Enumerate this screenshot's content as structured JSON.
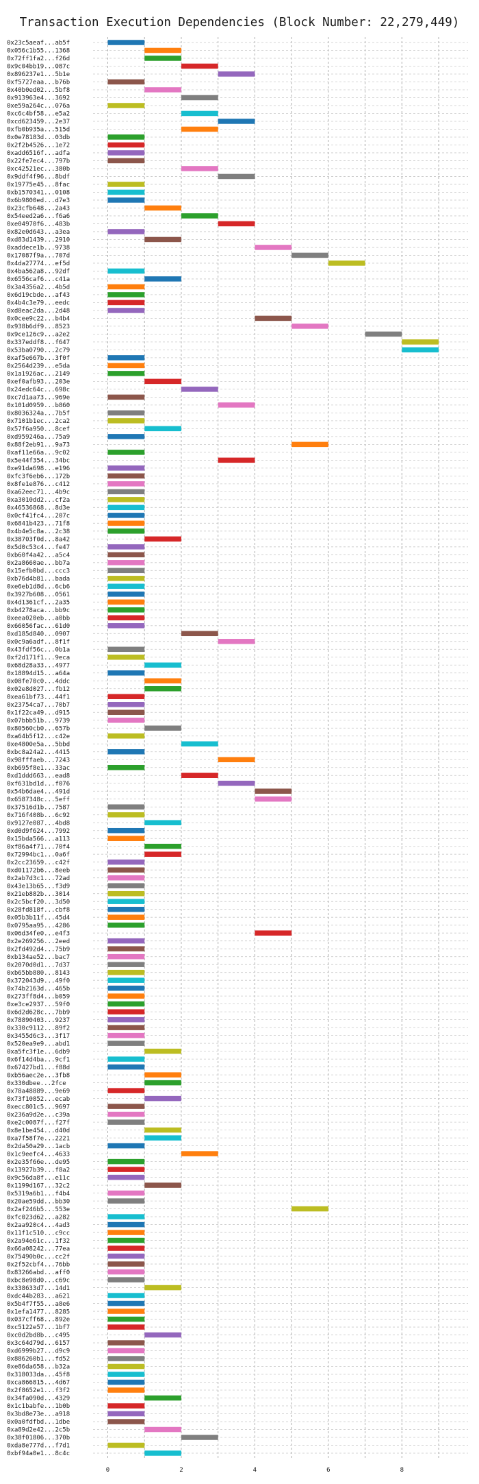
{
  "chart_data": {
    "type": "bar",
    "orientation": "horizontal",
    "title": "Transaction Execution Dependencies (Block Number: 22,279,449)",
    "xlabel": "",
    "ylabel": "",
    "xlim": [
      -0.4,
      9.8
    ],
    "xticks": [
      0,
      2,
      4,
      6,
      8
    ],
    "grid": true,
    "rows": [
      {
        "label": "0x23c5aeaf...ab5f",
        "x": 0,
        "color": "#1f77b4"
      },
      {
        "label": "0x056c1b55...1368",
        "x": 1,
        "color": "#ff7f0e"
      },
      {
        "label": "0x72ff1fa2...f26d",
        "x": 1,
        "color": "#2ca02c"
      },
      {
        "label": "0x9c04bb19...087c",
        "x": 2,
        "color": "#d62728"
      },
      {
        "label": "0x896237e1...5b1e",
        "x": 3,
        "color": "#9467bd"
      },
      {
        "label": "0xf5727eaa...b76b",
        "x": 0,
        "color": "#8c564b"
      },
      {
        "label": "0x40b0ed02...5bf8",
        "x": 1,
        "color": "#e377c2"
      },
      {
        "label": "0x913963e4...3692",
        "x": 2,
        "color": "#7f7f7f"
      },
      {
        "label": "0xe59a264c...076a",
        "x": 0,
        "color": "#bcbd22"
      },
      {
        "label": "0xc6c4bf58...e5a2",
        "x": 2,
        "color": "#17becf"
      },
      {
        "label": "0xcd623459...2e37",
        "x": 3,
        "color": "#1f77b4"
      },
      {
        "label": "0xfb0b935a...515d",
        "x": 2,
        "color": "#ff7f0e"
      },
      {
        "label": "0x0e78183d...03db",
        "x": 0,
        "color": "#2ca02c"
      },
      {
        "label": "0x2f2b4526...1e72",
        "x": 0,
        "color": "#d62728"
      },
      {
        "label": "0xadd6516f...adfa",
        "x": 0,
        "color": "#9467bd"
      },
      {
        "label": "0x22fe7ec4...797b",
        "x": 0,
        "color": "#8c564b"
      },
      {
        "label": "0xc42521ec...380b",
        "x": 2,
        "color": "#e377c2"
      },
      {
        "label": "0x9ddf4f96...8bdf",
        "x": 3,
        "color": "#7f7f7f"
      },
      {
        "label": "0x19775e45...8fac",
        "x": 0,
        "color": "#bcbd22"
      },
      {
        "label": "0xb1570341...0108",
        "x": 0,
        "color": "#17becf"
      },
      {
        "label": "0x6b9800ed...d7e3",
        "x": 0,
        "color": "#1f77b4"
      },
      {
        "label": "0x23cfb648...2a43",
        "x": 1,
        "color": "#ff7f0e"
      },
      {
        "label": "0x54eed2a6...f6a6",
        "x": 2,
        "color": "#2ca02c"
      },
      {
        "label": "0xe04970f6...483b",
        "x": 3,
        "color": "#d62728"
      },
      {
        "label": "0x82e0d643...a3ea",
        "x": 0,
        "color": "#9467bd"
      },
      {
        "label": "0xd83d1439...2910",
        "x": 1,
        "color": "#8c564b"
      },
      {
        "label": "0xaddece1b...9738",
        "x": 4,
        "color": "#e377c2"
      },
      {
        "label": "0x17087f9a...707d",
        "x": 5,
        "color": "#7f7f7f"
      },
      {
        "label": "0x4da27774...ef5d",
        "x": 6,
        "color": "#bcbd22"
      },
      {
        "label": "0x4ba562a8...92df",
        "x": 0,
        "color": "#17becf"
      },
      {
        "label": "0x6556caf6...c41a",
        "x": 1,
        "color": "#1f77b4"
      },
      {
        "label": "0x3a4356a2...4b5d",
        "x": 0,
        "color": "#ff7f0e"
      },
      {
        "label": "0x6d19cbde...af43",
        "x": 0,
        "color": "#2ca02c"
      },
      {
        "label": "0x4b4c3e79...eedc",
        "x": 0,
        "color": "#d62728"
      },
      {
        "label": "0xd8eac2da...2d48",
        "x": 0,
        "color": "#9467bd"
      },
      {
        "label": "0x0cee9c22...b4b4",
        "x": 4,
        "color": "#8c564b"
      },
      {
        "label": "0x938b6df9...8523",
        "x": 5,
        "color": "#e377c2"
      },
      {
        "label": "0x9ce126c9...a2e2",
        "x": 7,
        "color": "#7f7f7f"
      },
      {
        "label": "0x337eddf8...f647",
        "x": 8,
        "color": "#bcbd22"
      },
      {
        "label": "0x53ba0790...2c79",
        "x": 8,
        "color": "#17becf"
      },
      {
        "label": "0xaf5e667b...3f0f",
        "x": 0,
        "color": "#1f77b4"
      },
      {
        "label": "0x2564d239...e5da",
        "x": 0,
        "color": "#ff7f0e"
      },
      {
        "label": "0x1a1926ac...2149",
        "x": 0,
        "color": "#2ca02c"
      },
      {
        "label": "0xef0afb93...203e",
        "x": 1,
        "color": "#d62728"
      },
      {
        "label": "0x24edc64c...698c",
        "x": 2,
        "color": "#9467bd"
      },
      {
        "label": "0xc7d1aa73...969e",
        "x": 0,
        "color": "#8c564b"
      },
      {
        "label": "0x101d0959...b860",
        "x": 3,
        "color": "#e377c2"
      },
      {
        "label": "0x8036324a...7b5f",
        "x": 0,
        "color": "#7f7f7f"
      },
      {
        "label": "0x7101b1ec...2ca2",
        "x": 0,
        "color": "#bcbd22"
      },
      {
        "label": "0x57f6a950...8cef",
        "x": 1,
        "color": "#17becf"
      },
      {
        "label": "0xd959246a...75a9",
        "x": 0,
        "color": "#1f77b4"
      },
      {
        "label": "0x88f2eb91...9a73",
        "x": 5,
        "color": "#ff7f0e"
      },
      {
        "label": "0xaf11e66a...9c02",
        "x": 0,
        "color": "#2ca02c"
      },
      {
        "label": "0x5e44f354...34bc",
        "x": 3,
        "color": "#d62728"
      },
      {
        "label": "0xe91da698...e196",
        "x": 0,
        "color": "#9467bd"
      },
      {
        "label": "0xfc3f6eb6...172b",
        "x": 0,
        "color": "#8c564b"
      },
      {
        "label": "0x8fe1e876...c412",
        "x": 0,
        "color": "#e377c2"
      },
      {
        "label": "0xa62eec71...4b9c",
        "x": 0,
        "color": "#7f7f7f"
      },
      {
        "label": "0xa3010dd2...cf2a",
        "x": 0,
        "color": "#bcbd22"
      },
      {
        "label": "0x46536868...8d3e",
        "x": 0,
        "color": "#17becf"
      },
      {
        "label": "0x0cf41fc4...207c",
        "x": 0,
        "color": "#1f77b4"
      },
      {
        "label": "0x6841b423...71f8",
        "x": 0,
        "color": "#ff7f0e"
      },
      {
        "label": "0x4b4e5c8a...2c38",
        "x": 0,
        "color": "#2ca02c"
      },
      {
        "label": "0x38703f0d...8a42",
        "x": 1,
        "color": "#d62728"
      },
      {
        "label": "0x5d0c53c4...fe47",
        "x": 0,
        "color": "#9467bd"
      },
      {
        "label": "0xb60f4a42...a5c4",
        "x": 0,
        "color": "#8c564b"
      },
      {
        "label": "0x2a8660ae...bb7a",
        "x": 0,
        "color": "#e377c2"
      },
      {
        "label": "0x15efb0bd...ccc3",
        "x": 0,
        "color": "#7f7f7f"
      },
      {
        "label": "0xb76d4b81...bada",
        "x": 0,
        "color": "#bcbd22"
      },
      {
        "label": "0xe6eb1d8d...6cb6",
        "x": 0,
        "color": "#17becf"
      },
      {
        "label": "0x3927b608...0561",
        "x": 0,
        "color": "#1f77b4"
      },
      {
        "label": "0x4d1361cf...2a35",
        "x": 0,
        "color": "#ff7f0e"
      },
      {
        "label": "0xb4278aca...bb9c",
        "x": 0,
        "color": "#2ca02c"
      },
      {
        "label": "0xeea020eb...a0bb",
        "x": 0,
        "color": "#d62728"
      },
      {
        "label": "0x66056fac...61d0",
        "x": 0,
        "color": "#9467bd"
      },
      {
        "label": "0xd185d840...0907",
        "x": 2,
        "color": "#8c564b"
      },
      {
        "label": "0x0c9a6adf...8f1f",
        "x": 3,
        "color": "#e377c2"
      },
      {
        "label": "0x43fdf56c...0b1a",
        "x": 0,
        "color": "#7f7f7f"
      },
      {
        "label": "0xf2d171f1...9eca",
        "x": 0,
        "color": "#bcbd22"
      },
      {
        "label": "0x68d28a33...4977",
        "x": 1,
        "color": "#17becf"
      },
      {
        "label": "0x18894d15...a64a",
        "x": 0,
        "color": "#1f77b4"
      },
      {
        "label": "0x08fe70c0...4ddc",
        "x": 1,
        "color": "#ff7f0e"
      },
      {
        "label": "0x02e8d027...fb12",
        "x": 1,
        "color": "#2ca02c"
      },
      {
        "label": "0xea61bf73...44f1",
        "x": 0,
        "color": "#d62728"
      },
      {
        "label": "0x23754ca7...70b7",
        "x": 0,
        "color": "#9467bd"
      },
      {
        "label": "0x1f22ca49...d915",
        "x": 0,
        "color": "#8c564b"
      },
      {
        "label": "0x07bbb51b...9739",
        "x": 0,
        "color": "#e377c2"
      },
      {
        "label": "0x80560cb0...657b",
        "x": 1,
        "color": "#7f7f7f"
      },
      {
        "label": "0xa64b5f12...c42e",
        "x": 0,
        "color": "#bcbd22"
      },
      {
        "label": "0xe4800e5a...5bbd",
        "x": 2,
        "color": "#17becf"
      },
      {
        "label": "0xbc8a24a2...4415",
        "x": 0,
        "color": "#1f77b4"
      },
      {
        "label": "0x98fffaeb...7243",
        "x": 3,
        "color": "#ff7f0e"
      },
      {
        "label": "0xb695f8e1...33ac",
        "x": 0,
        "color": "#2ca02c"
      },
      {
        "label": "0xd1ddd663...ead8",
        "x": 2,
        "color": "#d62728"
      },
      {
        "label": "0xf631bd1d...f076",
        "x": 3,
        "color": "#9467bd"
      },
      {
        "label": "0x54b6dae4...491d",
        "x": 4,
        "color": "#8c564b"
      },
      {
        "label": "0x6587348c...5eff",
        "x": 4,
        "color": "#e377c2"
      },
      {
        "label": "0x37516d1b...7587",
        "x": 0,
        "color": "#7f7f7f"
      },
      {
        "label": "0x716f408b...6c92",
        "x": 0,
        "color": "#bcbd22"
      },
      {
        "label": "0x9127e087...4bd8",
        "x": 1,
        "color": "#17becf"
      },
      {
        "label": "0xd0d9f624...7992",
        "x": 0,
        "color": "#1f77b4"
      },
      {
        "label": "0x15bda566...a113",
        "x": 0,
        "color": "#ff7f0e"
      },
      {
        "label": "0xf86a4f71...70f4",
        "x": 1,
        "color": "#2ca02c"
      },
      {
        "label": "0x72994bc1...0a6f",
        "x": 1,
        "color": "#d62728"
      },
      {
        "label": "0x2cc23659...c42f",
        "x": 0,
        "color": "#9467bd"
      },
      {
        "label": "0xd01172b6...8eeb",
        "x": 0,
        "color": "#8c564b"
      },
      {
        "label": "0x2ab7d3c1...72ad",
        "x": 0,
        "color": "#e377c2"
      },
      {
        "label": "0x43e13b65...f3d9",
        "x": 0,
        "color": "#7f7f7f"
      },
      {
        "label": "0x21eb882b...3014",
        "x": 0,
        "color": "#bcbd22"
      },
      {
        "label": "0x2c5bcf20...3d50",
        "x": 0,
        "color": "#17becf"
      },
      {
        "label": "0x28fd818f...cbf8",
        "x": 0,
        "color": "#1f77b4"
      },
      {
        "label": "0x05b3b11f...45d4",
        "x": 0,
        "color": "#ff7f0e"
      },
      {
        "label": "0x0795aa95...4286",
        "x": 0,
        "color": "#2ca02c"
      },
      {
        "label": "0x06d34fe0...e4f3",
        "x": 4,
        "color": "#d62728"
      },
      {
        "label": "0x2e269256...2eed",
        "x": 0,
        "color": "#9467bd"
      },
      {
        "label": "0x2fd492d4...75b9",
        "x": 0,
        "color": "#8c564b"
      },
      {
        "label": "0xb134ae52...bac7",
        "x": 0,
        "color": "#e377c2"
      },
      {
        "label": "0x2070d0d1...7d37",
        "x": 0,
        "color": "#7f7f7f"
      },
      {
        "label": "0xb65bb880...8143",
        "x": 0,
        "color": "#bcbd22"
      },
      {
        "label": "0x372043d9...49f0",
        "x": 0,
        "color": "#17becf"
      },
      {
        "label": "0x74b2163d...465b",
        "x": 0,
        "color": "#1f77b4"
      },
      {
        "label": "0x273ff8d4...b059",
        "x": 0,
        "color": "#ff7f0e"
      },
      {
        "label": "0xe3ce2937...59f0",
        "x": 0,
        "color": "#2ca02c"
      },
      {
        "label": "0x6d2d628c...7bb9",
        "x": 0,
        "color": "#d62728"
      },
      {
        "label": "0x78890403...9237",
        "x": 0,
        "color": "#9467bd"
      },
      {
        "label": "0x330c9112...89f2",
        "x": 0,
        "color": "#8c564b"
      },
      {
        "label": "0x3455d6c3...3f17",
        "x": 0,
        "color": "#e377c2"
      },
      {
        "label": "0x520ea9e9...abd1",
        "x": 0,
        "color": "#7f7f7f"
      },
      {
        "label": "0xa5fc3f1e...6db9",
        "x": 1,
        "color": "#bcbd22"
      },
      {
        "label": "0x6f14d4ba...9cf1",
        "x": 0,
        "color": "#17becf"
      },
      {
        "label": "0x67427bd1...f88d",
        "x": 0,
        "color": "#1f77b4"
      },
      {
        "label": "0xb56aec2e...3fb8",
        "x": 1,
        "color": "#ff7f0e"
      },
      {
        "label": "0x330dbee...2fce",
        "x": 1,
        "color": "#2ca02c"
      },
      {
        "label": "0x78a48889...9e69",
        "x": 0,
        "color": "#d62728"
      },
      {
        "label": "0x73f10852...ecab",
        "x": 1,
        "color": "#9467bd"
      },
      {
        "label": "0xecc801c5...9697",
        "x": 0,
        "color": "#8c564b"
      },
      {
        "label": "0x236a9d2e...c39a",
        "x": 0,
        "color": "#e377c2"
      },
      {
        "label": "0xe2c0087f...f27f",
        "x": 0,
        "color": "#7f7f7f"
      },
      {
        "label": "0x8e1be454...d40d",
        "x": 1,
        "color": "#bcbd22"
      },
      {
        "label": "0xa7f58f7e...2221",
        "x": 1,
        "color": "#17becf"
      },
      {
        "label": "0x2da50a29...1acb",
        "x": 0,
        "color": "#1f77b4"
      },
      {
        "label": "0x1c9eefc4...4633",
        "x": 2,
        "color": "#ff7f0e"
      },
      {
        "label": "0x2e35f66e...de95",
        "x": 0,
        "color": "#2ca02c"
      },
      {
        "label": "0x13927b39...f8a2",
        "x": 0,
        "color": "#d62728"
      },
      {
        "label": "0x9c56da8f...e11c",
        "x": 0,
        "color": "#9467bd"
      },
      {
        "label": "0x1199d167...32c2",
        "x": 1,
        "color": "#8c564b"
      },
      {
        "label": "0x5319a6b1...f4b4",
        "x": 0,
        "color": "#e377c2"
      },
      {
        "label": "0x20ae59dd...bb30",
        "x": 0,
        "color": "#7f7f7f"
      },
      {
        "label": "0x2af246b5...553e",
        "x": 5,
        "color": "#bcbd22"
      },
      {
        "label": "0xfc023d62...a282",
        "x": 0,
        "color": "#17becf"
      },
      {
        "label": "0x2aa920c4...4ad3",
        "x": 0,
        "color": "#1f77b4"
      },
      {
        "label": "0x11f1c510...c9cc",
        "x": 0,
        "color": "#ff7f0e"
      },
      {
        "label": "0x2a94e61c...1f32",
        "x": 0,
        "color": "#2ca02c"
      },
      {
        "label": "0x66a08242...77ea",
        "x": 0,
        "color": "#d62728"
      },
      {
        "label": "0x75490b0c...cc2f",
        "x": 0,
        "color": "#9467bd"
      },
      {
        "label": "0x2f52cbf4...76bb",
        "x": 0,
        "color": "#8c564b"
      },
      {
        "label": "0x83266abd...aff0",
        "x": 0,
        "color": "#e377c2"
      },
      {
        "label": "0xbc8e98d0...c69c",
        "x": 0,
        "color": "#7f7f7f"
      },
      {
        "label": "0x338633d7...14d1",
        "x": 1,
        "color": "#bcbd22"
      },
      {
        "label": "0xdc44b283...a621",
        "x": 0,
        "color": "#17becf"
      },
      {
        "label": "0x5b4f7f55...a8e6",
        "x": 0,
        "color": "#1f77b4"
      },
      {
        "label": "0x1efa1477...8285",
        "x": 0,
        "color": "#ff7f0e"
      },
      {
        "label": "0x037cff68...892e",
        "x": 0,
        "color": "#2ca02c"
      },
      {
        "label": "0xc5122e57...1bf7",
        "x": 0,
        "color": "#d62728"
      },
      {
        "label": "0xc0d2bd8b...c495",
        "x": 1,
        "color": "#9467bd"
      },
      {
        "label": "0x3c64d79d...6157",
        "x": 0,
        "color": "#8c564b"
      },
      {
        "label": "0xd6999b27...d9c9",
        "x": 0,
        "color": "#e377c2"
      },
      {
        "label": "0x886260b1...fd52",
        "x": 0,
        "color": "#7f7f7f"
      },
      {
        "label": "0xe86da658...b32a",
        "x": 0,
        "color": "#bcbd22"
      },
      {
        "label": "0x318033da...45f8",
        "x": 0,
        "color": "#17becf"
      },
      {
        "label": "0xca866815...4d67",
        "x": 0,
        "color": "#1f77b4"
      },
      {
        "label": "0x2f8652e1...f3f2",
        "x": 0,
        "color": "#ff7f0e"
      },
      {
        "label": "0x34fa090d...4329",
        "x": 1,
        "color": "#2ca02c"
      },
      {
        "label": "0x1c1babfe...1b0b",
        "x": 0,
        "color": "#d62728"
      },
      {
        "label": "0x3bd8e73e...a918",
        "x": 0,
        "color": "#9467bd"
      },
      {
        "label": "0x0a0fdfbd...1dbe",
        "x": 0,
        "color": "#8c564b"
      },
      {
        "label": "0xa89d2e42...2c5b",
        "x": 1,
        "color": "#e377c2"
      },
      {
        "label": "0x38f01806...370b",
        "x": 2,
        "color": "#7f7f7f"
      },
      {
        "label": "0xda8e777d...f7d1",
        "x": 0,
        "color": "#bcbd22"
      },
      {
        "label": "0xbf94a0e1...8c4c",
        "x": 1,
        "color": "#17becf"
      }
    ]
  }
}
